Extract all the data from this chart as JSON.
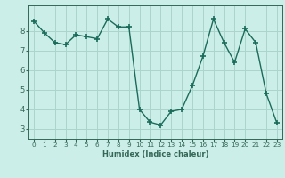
{
  "x": [
    0,
    1,
    2,
    3,
    4,
    5,
    6,
    7,
    8,
    9,
    10,
    11,
    12,
    13,
    14,
    15,
    16,
    17,
    18,
    19,
    20,
    21,
    22,
    23
  ],
  "y": [
    8.5,
    7.9,
    7.4,
    7.3,
    7.8,
    7.7,
    7.6,
    8.6,
    8.2,
    8.2,
    4.0,
    3.35,
    3.2,
    3.9,
    4.0,
    5.2,
    6.7,
    8.6,
    7.4,
    6.4,
    8.1,
    7.4,
    4.8,
    3.3
  ],
  "line_color": "#1a6b5a",
  "marker": "+",
  "marker_size": 4,
  "marker_lw": 1.2,
  "line_width": 1.0,
  "bg_color": "#cceee8",
  "grid_color": "#aad4cc",
  "xlabel": "Humidex (Indice chaleur)",
  "ylim": [
    2.5,
    9.3
  ],
  "xlim": [
    -0.5,
    23.5
  ],
  "yticks": [
    3,
    4,
    5,
    6,
    7,
    8
  ],
  "xticks": [
    0,
    1,
    2,
    3,
    4,
    5,
    6,
    7,
    8,
    9,
    10,
    11,
    12,
    13,
    14,
    15,
    16,
    17,
    18,
    19,
    20,
    21,
    22,
    23
  ],
  "xtick_labels": [
    "0",
    "1",
    "2",
    "3",
    "4",
    "5",
    "6",
    "7",
    "8",
    "9",
    "10",
    "11",
    "12",
    "13",
    "14",
    "15",
    "16",
    "17",
    "18",
    "19",
    "20",
    "21",
    "22",
    "23"
  ],
  "axis_color": "#336655",
  "tick_color": "#336655",
  "label_color": "#336655",
  "xlabel_fontsize": 6.0,
  "ytick_fontsize": 6.0,
  "xtick_fontsize": 5.2
}
